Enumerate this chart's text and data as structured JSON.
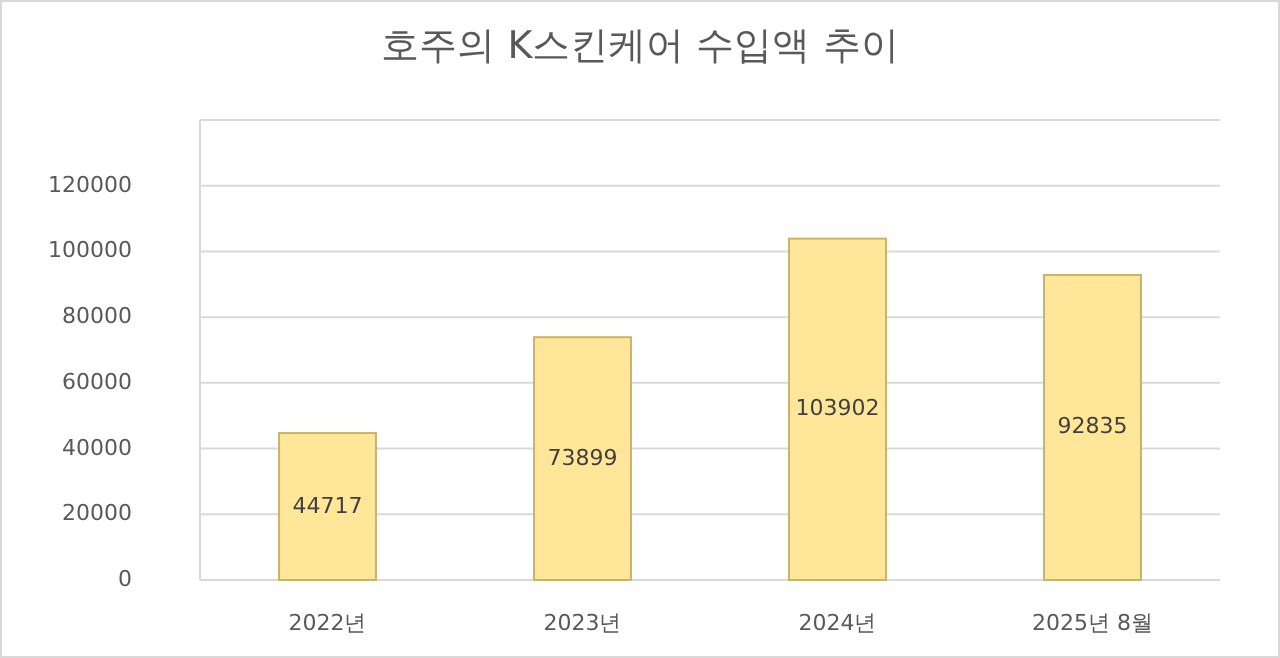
{
  "chart_data": {
    "type": "bar",
    "title": "호주의 K스킨케어 수입액 추이",
    "categories": [
      "2022년",
      "2023년",
      "2024년",
      "2025년 8월"
    ],
    "values": [
      44717,
      73899,
      103902,
      92835
    ],
    "color": "#ffe699",
    "ylim": [
      0,
      140000
    ],
    "yticks": [
      0,
      20000,
      40000,
      60000,
      80000,
      100000,
      120000
    ],
    "grid": "y",
    "data_labels": true
  }
}
